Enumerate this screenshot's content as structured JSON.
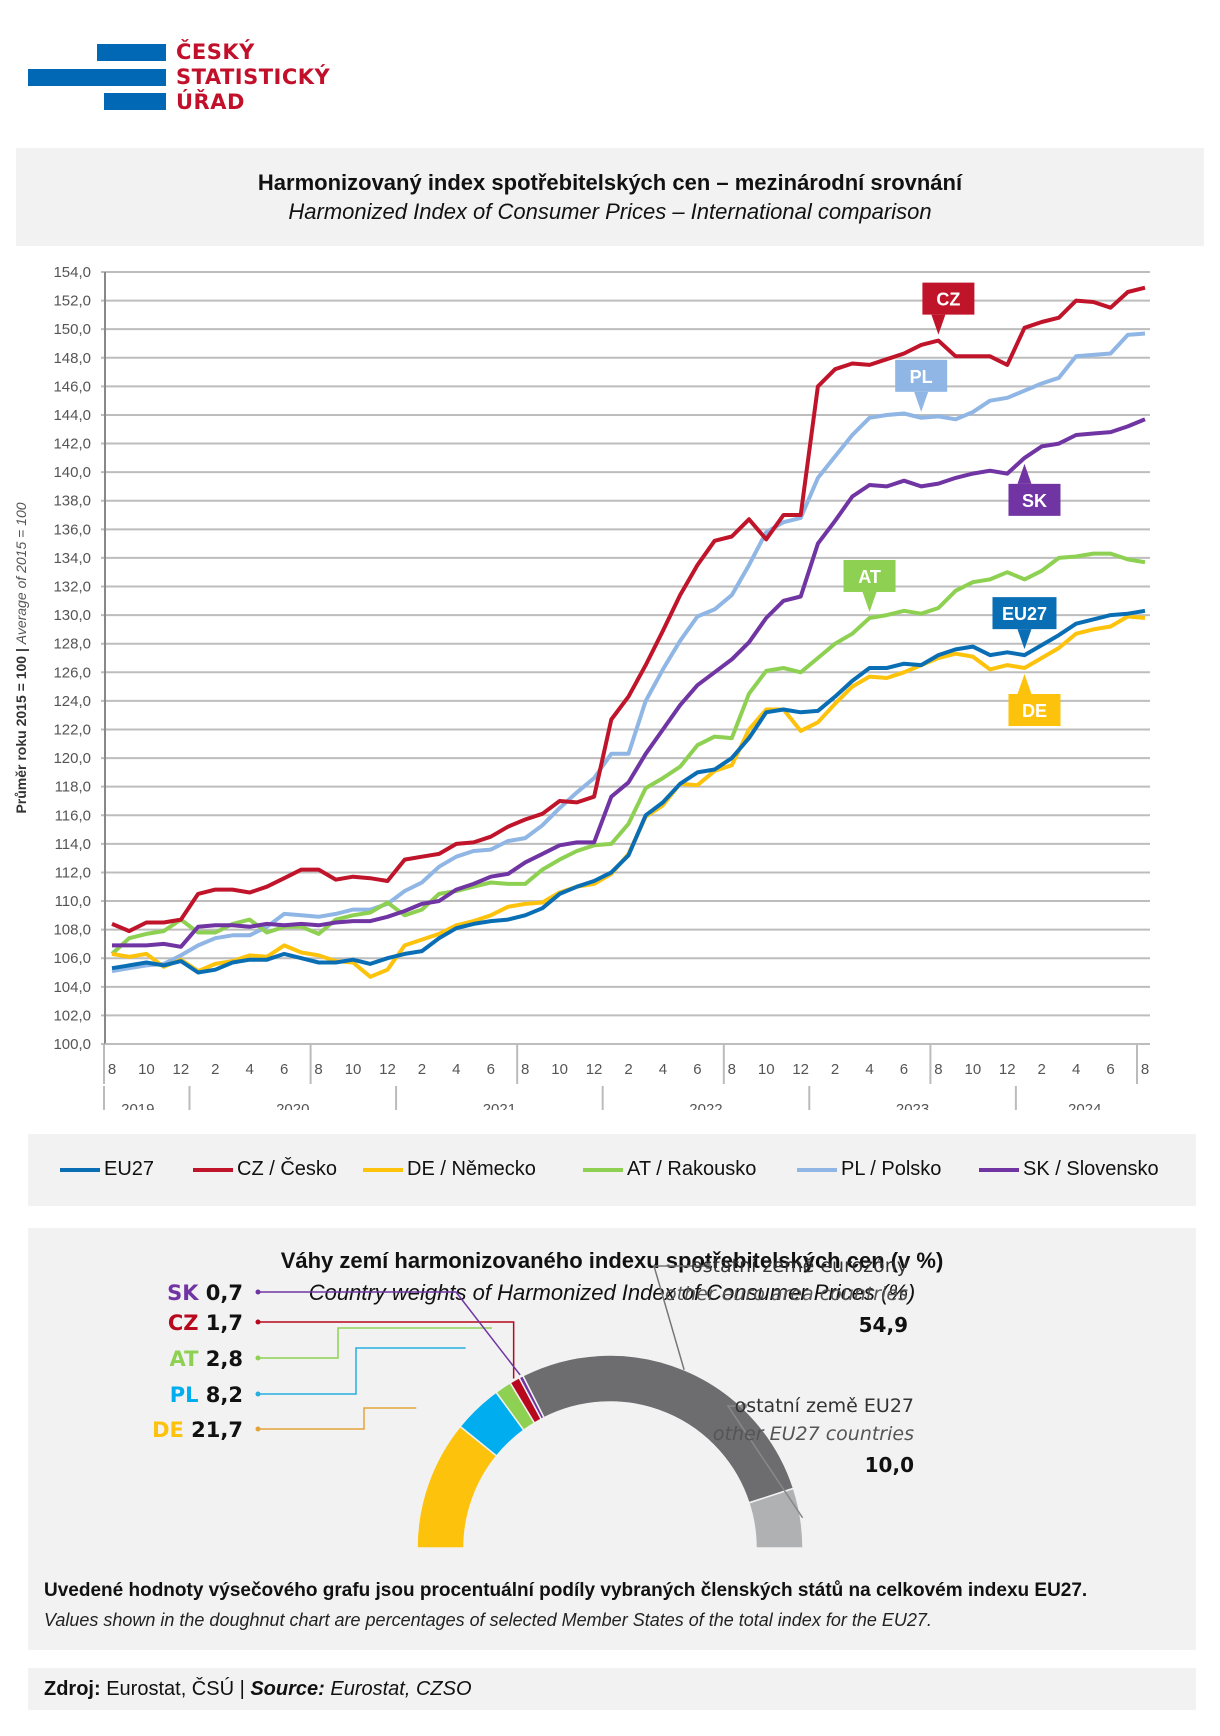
{
  "logo": {
    "lines": [
      "ČESKÝ",
      "STATISTICKÝ",
      "ÚŘAD"
    ],
    "text_color": "#c2102b",
    "bar_color": "#0068b4"
  },
  "header": {
    "title_cs": "Harmonizovaný index spotřebitelských cen – mezinárodní srovnání",
    "title_en": "Harmonized Index of Consumer Prices – International comparison"
  },
  "chart_data": [
    {
      "type": "line",
      "title": "Harmonizovaný index spotřebitelských cen – mezinárodní srovnání",
      "subtitle": "Harmonized Index of Consumer Prices – International comparison",
      "ylabel_cs": "Průměr roku 2015 = 100",
      "ylabel_en": "Average of 2015 = 100",
      "ylim": [
        100,
        154
      ],
      "ytick_step": 2,
      "ytick_labels": [
        "100,0",
        "102,0",
        "104,0",
        "106,0",
        "108,0",
        "110,0",
        "112,0",
        "114,0",
        "116,0",
        "118,0",
        "120,0",
        "122,0",
        "124,0",
        "126,0",
        "128,0",
        "130,0",
        "132,0",
        "134,0",
        "136,0",
        "138,0",
        "140,0",
        "142,0",
        "144,0",
        "146,0",
        "148,0",
        "150,0",
        "152,0",
        "154,0"
      ],
      "grid": true,
      "x_start": "2019-08",
      "x_end": "2024-08",
      "month_tick_labels": [
        "8",
        "10",
        "12",
        "2",
        "4",
        "6",
        "8",
        "10",
        "12",
        "2",
        "4",
        "6",
        "8",
        "10",
        "12",
        "2",
        "4",
        "6",
        "8",
        "10",
        "12",
        "2",
        "4",
        "6",
        "8",
        "10",
        "12",
        "2",
        "4",
        "6",
        "8"
      ],
      "year_labels": [
        "2019",
        "2020",
        "2021",
        "2022",
        "2023",
        "2024"
      ],
      "legend_position": "bottom",
      "series": [
        {
          "key": "EU27",
          "name": "EU27",
          "color": "#0a6eb4",
          "tag": "EU27",
          "values": [
            105.3,
            105.5,
            105.7,
            105.5,
            105.8,
            105.0,
            105.2,
            105.7,
            105.9,
            105.9,
            106.3,
            106.0,
            105.7,
            105.7,
            105.9,
            105.6,
            106.0,
            106.3,
            106.5,
            107.4,
            108.1,
            108.4,
            108.6,
            108.7,
            109.0,
            109.5,
            110.5,
            111.0,
            111.4,
            112.0,
            113.2,
            116.0,
            116.9,
            118.2,
            119.0,
            119.2,
            120.0,
            121.4,
            123.2,
            123.4,
            123.2,
            123.3,
            124.3,
            125.4,
            126.3,
            126.3,
            126.6,
            126.5,
            127.2,
            127.6,
            127.8,
            127.2,
            127.4,
            127.2,
            127.9,
            128.6,
            129.4,
            129.7,
            130.0,
            130.1,
            130.3
          ]
        },
        {
          "key": "CZ",
          "name": "CZ / Česko",
          "color": "#c0142b",
          "tag": "CZ",
          "values": [
            108.4,
            107.9,
            108.5,
            108.5,
            108.7,
            110.5,
            110.8,
            110.8,
            110.6,
            111.0,
            111.6,
            112.2,
            112.2,
            111.5,
            111.7,
            111.6,
            111.4,
            112.9,
            113.1,
            113.3,
            114.0,
            114.1,
            114.5,
            115.2,
            115.7,
            116.1,
            117.0,
            116.9,
            117.3,
            122.7,
            124.3,
            126.5,
            128.9,
            131.4,
            133.5,
            135.2,
            135.5,
            136.7,
            135.3,
            137.0,
            137.0,
            146.0,
            147.2,
            147.6,
            147.5,
            147.9,
            148.3,
            148.9,
            149.2,
            148.1,
            148.1,
            148.1,
            147.5,
            150.1,
            150.5,
            150.8,
            152.0,
            151.9,
            151.5,
            152.6,
            152.9
          ]
        },
        {
          "key": "DE",
          "name": "DE / Německo",
          "color": "#fdc20c",
          "tag": "DE",
          "values": [
            106.3,
            106.1,
            106.3,
            105.4,
            105.9,
            105.1,
            105.6,
            105.8,
            106.2,
            106.1,
            106.9,
            106.4,
            106.2,
            105.8,
            105.7,
            104.7,
            105.2,
            106.9,
            107.3,
            107.7,
            108.3,
            108.6,
            109.0,
            109.6,
            109.8,
            109.9,
            110.6,
            111.0,
            111.2,
            111.9,
            113.3,
            115.9,
            116.7,
            118.2,
            118.1,
            119.1,
            119.5,
            122.0,
            123.4,
            123.4,
            121.9,
            122.5,
            123.8,
            125.0,
            125.7,
            125.6,
            126.0,
            126.5,
            127.0,
            127.3,
            127.1,
            126.2,
            126.5,
            126.3,
            127.0,
            127.7,
            128.7,
            129.0,
            129.2,
            129.9,
            129.8
          ]
        },
        {
          "key": "AT",
          "name": "AT / Rakousko",
          "color": "#8ed152",
          "tag": "AT",
          "values": [
            106.3,
            107.4,
            107.7,
            107.9,
            108.7,
            107.8,
            107.8,
            108.4,
            108.7,
            107.8,
            108.2,
            108.2,
            107.7,
            108.7,
            109.0,
            109.2,
            109.9,
            109.0,
            109.4,
            110.5,
            110.7,
            111.0,
            111.3,
            111.2,
            111.2,
            112.2,
            112.9,
            113.5,
            113.9,
            114.0,
            115.4,
            117.9,
            118.6,
            119.4,
            120.9,
            121.5,
            121.4,
            124.5,
            126.1,
            126.3,
            126.0,
            127.0,
            128.0,
            128.7,
            129.8,
            130.0,
            130.3,
            130.1,
            130.5,
            131.7,
            132.3,
            132.5,
            133.0,
            132.5,
            133.1,
            134.0,
            134.1,
            134.3,
            134.3,
            133.9,
            133.7
          ]
        },
        {
          "key": "PL",
          "name": "PL / Polsko",
          "color": "#8fb6e4",
          "tag": "PL",
          "values": [
            105.1,
            105.3,
            105.5,
            105.6,
            106.2,
            106.9,
            107.4,
            107.6,
            107.6,
            108.2,
            109.1,
            109.0,
            108.9,
            109.1,
            109.4,
            109.4,
            109.8,
            110.7,
            111.3,
            112.4,
            113.1,
            113.5,
            113.6,
            114.2,
            114.4,
            115.3,
            116.5,
            117.6,
            118.6,
            120.3,
            120.3,
            124.0,
            126.2,
            128.2,
            129.9,
            130.4,
            131.4,
            133.5,
            135.8,
            136.5,
            136.8,
            139.6,
            141.1,
            142.6,
            143.8,
            144.0,
            144.1,
            143.8,
            143.9,
            143.7,
            144.2,
            145.0,
            145.2,
            145.7,
            146.2,
            146.6,
            148.1,
            148.2,
            148.3,
            149.6,
            149.7
          ]
        },
        {
          "key": "SK",
          "name": "SK / Slovensko",
          "color": "#7034a3",
          "tag": "SK",
          "values": [
            106.9,
            106.9,
            106.9,
            107.0,
            106.8,
            108.2,
            108.3,
            108.3,
            108.2,
            108.4,
            108.3,
            108.4,
            108.3,
            108.5,
            108.6,
            108.6,
            108.9,
            109.3,
            109.8,
            110.0,
            110.8,
            111.2,
            111.7,
            111.9,
            112.7,
            113.3,
            113.9,
            114.1,
            114.1,
            117.3,
            118.3,
            120.3,
            122.0,
            123.7,
            125.1,
            126.0,
            126.9,
            128.1,
            129.8,
            131.0,
            131.3,
            135.0,
            136.6,
            138.3,
            139.1,
            139.0,
            139.4,
            139.0,
            139.2,
            139.6,
            139.9,
            140.1,
            139.9,
            141.0,
            141.8,
            142.0,
            142.6,
            142.7,
            142.8,
            143.2,
            143.7
          ]
        }
      ],
      "tags": [
        {
          "series": "CZ",
          "label": "CZ",
          "month_index": 48,
          "placement": "above"
        },
        {
          "series": "PL",
          "label": "PL",
          "month_index": 47,
          "placement": "above"
        },
        {
          "series": "SK",
          "label": "SK",
          "month_index": 53,
          "placement": "below"
        },
        {
          "series": "AT",
          "label": "AT",
          "month_index": 44,
          "placement": "above"
        },
        {
          "series": "EU27",
          "label": "EU27",
          "month_index": 53,
          "placement": "above"
        },
        {
          "series": "DE",
          "label": "DE",
          "month_index": 53,
          "placement": "below"
        }
      ]
    },
    {
      "type": "pie",
      "variant": "half-doughnut",
      "title": "Váhy zemí harmonizovaného indexu spotřebitelských cen (v %)",
      "subtitle": "Country weights of Harmonized Index of Consumer Prices (%)",
      "slices": [
        {
          "key": "DE",
          "label": "DE",
          "value": 21.7,
          "value_label": "21,7",
          "color": "#fdc20c"
        },
        {
          "key": "PL",
          "label": "PL",
          "value": 8.2,
          "value_label": "8,2",
          "color": "#00aeef"
        },
        {
          "key": "AT",
          "label": "AT",
          "value": 2.8,
          "value_label": "2,8",
          "color": "#8ed152"
        },
        {
          "key": "CZ",
          "label": "CZ",
          "value": 1.7,
          "value_label": "1,7",
          "color": "#b8081e"
        },
        {
          "key": "SK",
          "label": "SK",
          "value": 0.7,
          "value_label": "0,7",
          "color": "#7034a3"
        },
        {
          "key": "EA",
          "label_cs": "ostatní země eurozóny",
          "label_en": "other euro area countries",
          "value": 54.9,
          "value_label": "54,9",
          "color": "#6d6d6f"
        },
        {
          "key": "EU",
          "label_cs": "ostatní země EU27",
          "label_en": "other EU27 countries",
          "value": 10.0,
          "value_label": "10,0",
          "color": "#b0b1b3"
        }
      ]
    }
  ],
  "pie_section": {
    "title_cs": "Váhy zemí harmonizovaného indexu spotřebitelských cen (v %)",
    "title_en": "Country weights of Harmonized Index of Consumer Prices (%)",
    "note_cs": "Uvedené hodnoty výsečového grafu jsou procentuální podíly vybraných členských států na celkovém indexu EU27.",
    "note_en": "Values shown in the doughnut chart are percentages of selected Member States of the total index for the EU27."
  },
  "source": {
    "label_cs": "Zdroj:",
    "value_cs": " Eurostat, ČSÚ | ",
    "label_en": "Source:",
    "value_en": " Eurostat, CZSO"
  }
}
